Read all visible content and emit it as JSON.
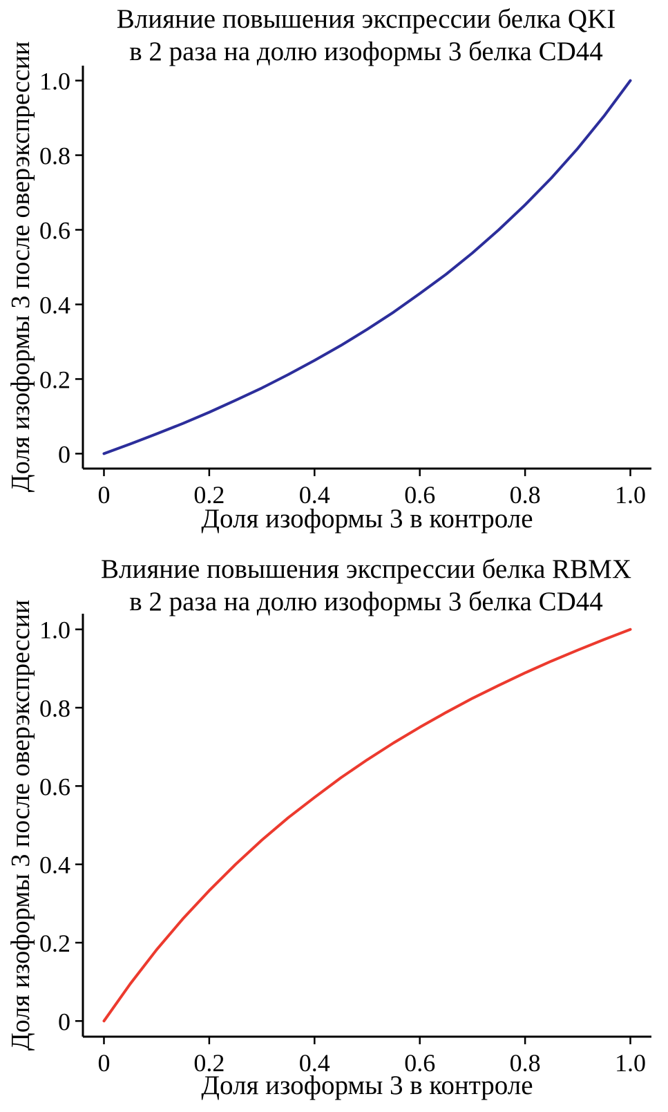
{
  "colors": {
    "background": "#ffffff",
    "text": "#000000",
    "axis": "#000000",
    "qki_line": "#2c2e9b",
    "rbmx_line": "#ec3a2e"
  },
  "chart_data": [
    {
      "type": "line",
      "title_lines": [
        "Влияние повышения экспрессии белка QKI",
        "в 2 раза на долю изоформы 3 белка CD44"
      ],
      "xlabel": "Доля изоформы 3 в контроле",
      "ylabel": "Доля изоформы 3 после оверэкспрессии",
      "xlim": [
        0,
        1
      ],
      "ylim": [
        0,
        1
      ],
      "xticks": [
        "0",
        "0.2",
        "0.4",
        "0.6",
        "0.8",
        "1.0"
      ],
      "yticks": [
        "0",
        "0.2",
        "0.4",
        "0.6",
        "0.8",
        "1.0"
      ],
      "grid": false,
      "legend": "none",
      "series": [
        {
          "name": "QKI",
          "color": "#2c2e9b",
          "x": [
            0,
            0.05,
            0.1,
            0.15,
            0.2,
            0.25,
            0.3,
            0.35,
            0.4,
            0.45,
            0.5,
            0.55,
            0.6,
            0.65,
            0.7,
            0.75,
            0.8,
            0.85,
            0.9,
            0.95,
            1.0
          ],
          "y": [
            0,
            0.026,
            0.053,
            0.081,
            0.111,
            0.143,
            0.176,
            0.212,
            0.25,
            0.29,
            0.333,
            0.379,
            0.429,
            0.481,
            0.538,
            0.6,
            0.667,
            0.739,
            0.818,
            0.905,
            1.0
          ]
        }
      ]
    },
    {
      "type": "line",
      "title_lines": [
        "Влияние повышения экспрессии белка RBMX",
        "в 2 раза на долю изоформы 3 белка CD44"
      ],
      "xlabel": "Доля изоформы 3 в контроле",
      "ylabel": "Доля изоформы 3 после оверэкспрессии",
      "xlim": [
        0,
        1
      ],
      "ylim": [
        0,
        1
      ],
      "xticks": [
        "0",
        "0.2",
        "0.4",
        "0.6",
        "0.8",
        "1.0"
      ],
      "yticks": [
        "0",
        "0.2",
        "0.4",
        "0.6",
        "0.8",
        "1.0"
      ],
      "grid": false,
      "legend": "none",
      "series": [
        {
          "name": "RBMX",
          "color": "#ec3a2e",
          "x": [
            0,
            0.05,
            0.1,
            0.15,
            0.2,
            0.25,
            0.3,
            0.35,
            0.4,
            0.45,
            0.5,
            0.55,
            0.6,
            0.65,
            0.7,
            0.75,
            0.8,
            0.85,
            0.9,
            0.95,
            1.0
          ],
          "y": [
            0,
            0.095,
            0.182,
            0.261,
            0.333,
            0.4,
            0.462,
            0.519,
            0.571,
            0.621,
            0.667,
            0.71,
            0.75,
            0.788,
            0.824,
            0.857,
            0.889,
            0.919,
            0.947,
            0.974,
            1.0
          ]
        }
      ]
    }
  ]
}
